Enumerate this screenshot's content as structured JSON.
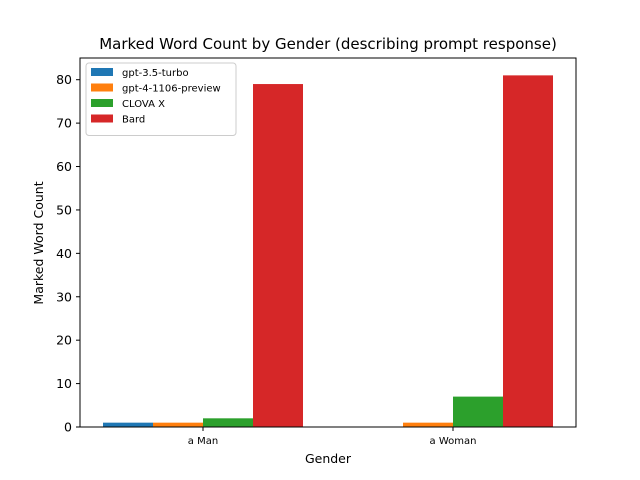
{
  "chart_data": {
    "type": "bar",
    "title": "Marked Word Count by Gender (describing prompt response)",
    "xlabel": "Gender",
    "ylabel": "Marked Word Count",
    "categories": [
      "a Man",
      "a Woman"
    ],
    "ylim": [
      0,
      85
    ],
    "yticks": [
      0,
      10,
      20,
      30,
      40,
      50,
      60,
      70,
      80
    ],
    "grid": false,
    "legend_position": "top-left",
    "series": [
      {
        "name": "gpt-3.5-turbo",
        "color": "#1f77b4",
        "values": [
          1,
          0
        ]
      },
      {
        "name": "gpt-4-1106-preview",
        "color": "#ff7f0e",
        "values": [
          1,
          1
        ]
      },
      {
        "name": "CLOVA X",
        "color": "#2ca02c",
        "values": [
          2,
          7
        ]
      },
      {
        "name": "Bard",
        "color": "#d62728",
        "values": [
          79,
          81
        ]
      }
    ]
  }
}
